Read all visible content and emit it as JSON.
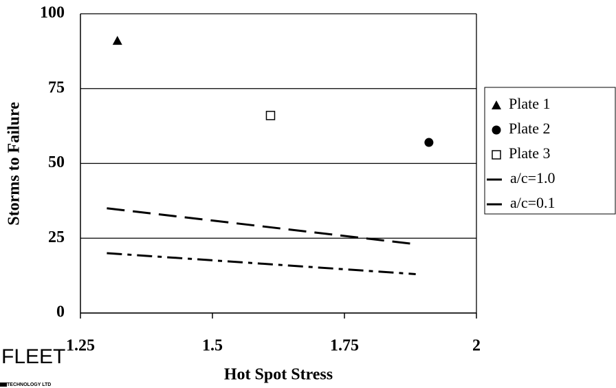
{
  "chart_data": {
    "type": "scatter",
    "xlabel": "Hot Spot Stress",
    "ylabel": "Storms to Failure",
    "xlim": [
      1.25,
      2
    ],
    "xticks": [
      1.25,
      1.5,
      1.75,
      2
    ],
    "ylim": [
      0,
      100
    ],
    "yticks": [
      0,
      25,
      50,
      75,
      100
    ],
    "grid": true,
    "legend": "right",
    "series": [
      {
        "name": "Plate 1",
        "marker": "triangle",
        "color": "#000000",
        "x": [
          1.32
        ],
        "values": [
          91
        ]
      },
      {
        "name": "Plate 2",
        "marker": "circle",
        "color": "#000000",
        "x": [
          1.91
        ],
        "values": [
          57
        ]
      },
      {
        "name": "Plate 3",
        "marker": "square",
        "color": "#000000",
        "x": [
          1.61
        ],
        "values": [
          66
        ]
      },
      {
        "name": "a/c=1.0",
        "marker": "dashed-line",
        "color": "#000000",
        "x": [
          1.3,
          1.885
        ],
        "values": [
          35,
          23
        ]
      },
      {
        "name": "a/c=0.1",
        "marker": "dashdot-line",
        "color": "#000000",
        "x": [
          1.3,
          1.885
        ],
        "values": [
          20,
          13
        ]
      }
    ]
  },
  "logo": {
    "name": "FLEET",
    "sub": "TECHNOLOGY LTD"
  }
}
